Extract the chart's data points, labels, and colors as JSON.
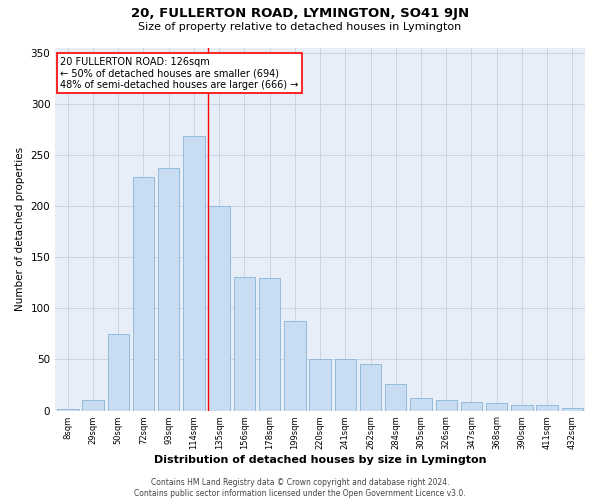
{
  "title": "20, FULLERTON ROAD, LYMINGTON, SO41 9JN",
  "subtitle": "Size of property relative to detached houses in Lymington",
  "xlabel": "Distribution of detached houses by size in Lymington",
  "ylabel": "Number of detached properties",
  "categories": [
    "8sqm",
    "29sqm",
    "50sqm",
    "72sqm",
    "93sqm",
    "114sqm",
    "135sqm",
    "156sqm",
    "178sqm",
    "199sqm",
    "220sqm",
    "241sqm",
    "262sqm",
    "284sqm",
    "305sqm",
    "326sqm",
    "347sqm",
    "368sqm",
    "390sqm",
    "411sqm",
    "432sqm"
  ],
  "bar_values": [
    2,
    10,
    75,
    228,
    237,
    268,
    200,
    131,
    130,
    88,
    50,
    50,
    46,
    26,
    12,
    10,
    8,
    7,
    5,
    5,
    3
  ],
  "bar_color": "#c9ddf2",
  "bar_edge_color": "#8ab4d8",
  "grid_color": "#c8d4e8",
  "background_color": "#e8eef8",
  "vline_index": 5,
  "vline_color": "red",
  "annotation_text": "20 FULLERTON ROAD: 126sqm\n← 50% of detached houses are smaller (694)\n48% of semi-detached houses are larger (666) →",
  "annotation_box_color": "white",
  "annotation_box_edge": "red",
  "footer": "Contains HM Land Registry data © Crown copyright and database right 2024.\nContains public sector information licensed under the Open Government Licence v3.0.",
  "ylim": [
    0,
    355
  ],
  "yticks": [
    0,
    50,
    100,
    150,
    200,
    250,
    300,
    350
  ],
  "title_fontsize": 9.5,
  "subtitle_fontsize": 8,
  "ylabel_fontsize": 7.5,
  "xlabel_fontsize": 8,
  "ytick_fontsize": 7.5,
  "xtick_fontsize": 6
}
